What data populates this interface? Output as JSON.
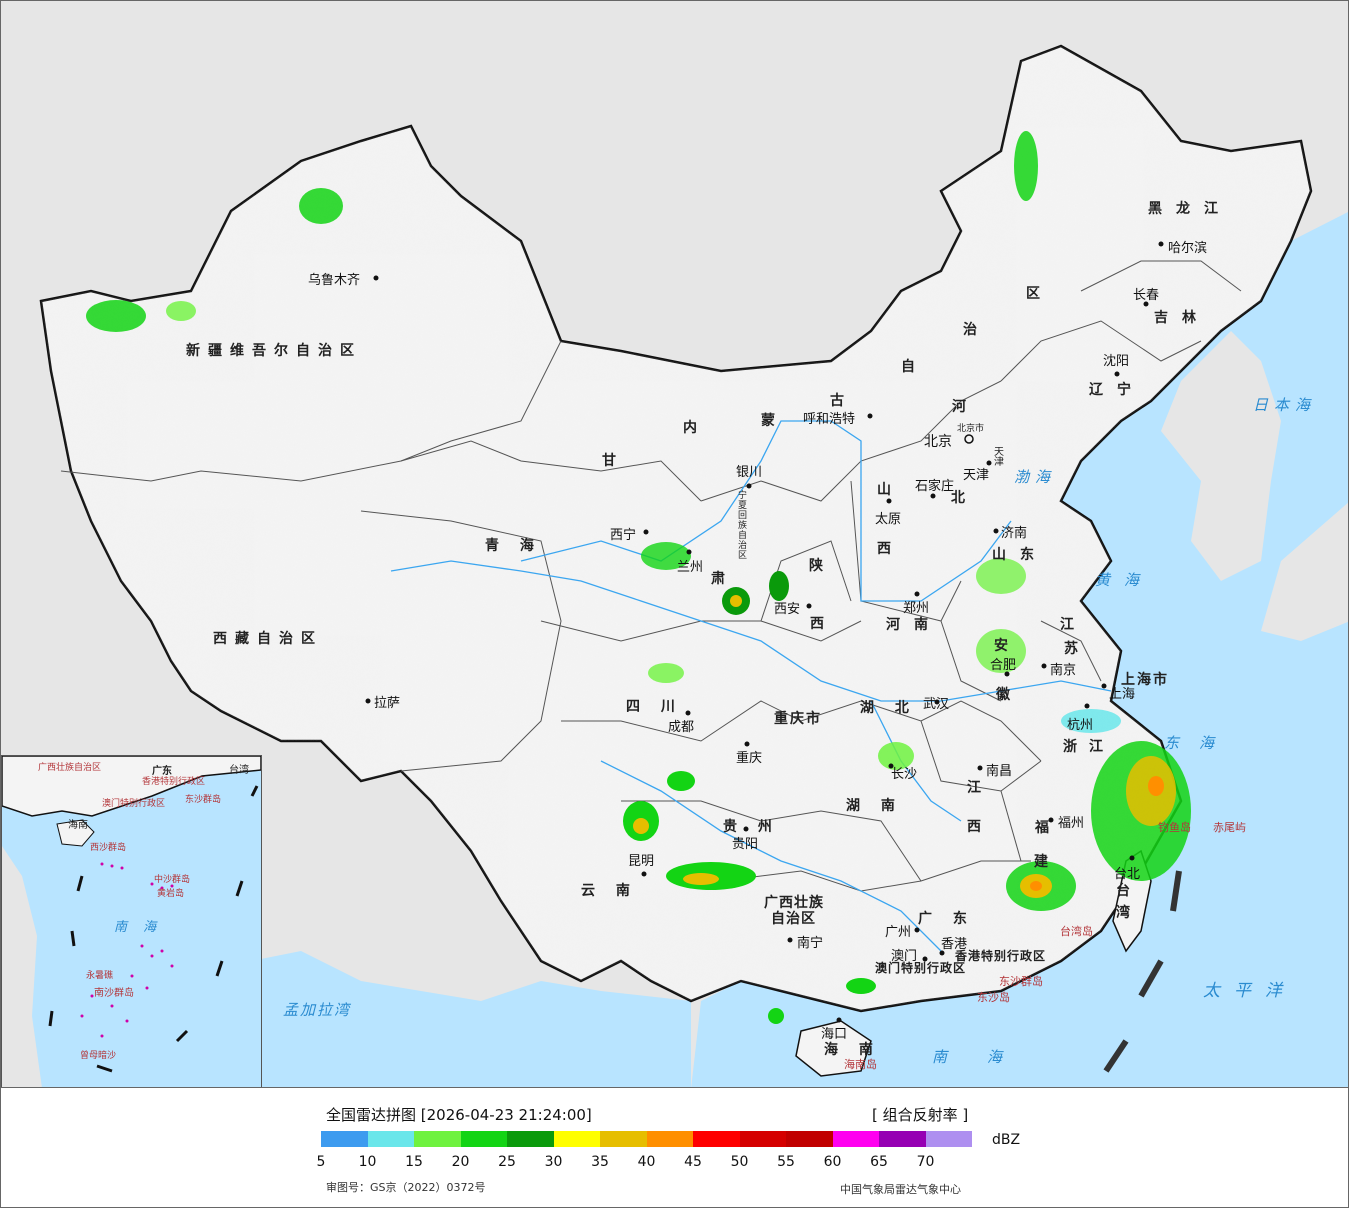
{
  "legend": {
    "title": "全国雷达拼图 [2026-04-23 21:24:00]",
    "product": "[ 组合反射率 ]",
    "unit": "dBZ",
    "ticks": [
      "5",
      "10",
      "15",
      "20",
      "25",
      "30",
      "35",
      "40",
      "45",
      "50",
      "55",
      "60",
      "65",
      "70"
    ],
    "colors": [
      "#3d9bef",
      "#6ae6ea",
      "#6ff23f",
      "#13d414",
      "#0a9a0b",
      "#fefe00",
      "#e6be00",
      "#ff8f00",
      "#fe0000",
      "#d50000",
      "#c10000",
      "#ff00f0",
      "#9600b3",
      "#ae8ff0"
    ],
    "review_no": "审图号：GS京（2022）0372号",
    "org": "中国气象局雷达气象中心"
  },
  "provinces": [
    {
      "id": "xinjiang",
      "text": "新疆维吾尔自治区"
    },
    {
      "id": "xizang",
      "text": "西藏自治区"
    },
    {
      "id": "qinghai",
      "text": "青  海"
    },
    {
      "id": "gansu",
      "text": "甘"
    },
    {
      "id": "gansu2",
      "text": "肃"
    },
    {
      "id": "neimenggu1",
      "text": "内"
    },
    {
      "id": "neimenggu2",
      "text": "蒙"
    },
    {
      "id": "neimenggu3",
      "text": "古"
    },
    {
      "id": "neimenggu4",
      "text": "自"
    },
    {
      "id": "neimenggu5",
      "text": "治"
    },
    {
      "id": "neimenggu6",
      "text": "区"
    },
    {
      "id": "heilongjiang",
      "text": "黑龙江"
    },
    {
      "id": "jilin",
      "text": "吉林"
    },
    {
      "id": "liaoning",
      "text": "辽宁"
    },
    {
      "id": "hebei1",
      "text": "河"
    },
    {
      "id": "hebei2",
      "text": "北"
    },
    {
      "id": "shanxi1",
      "text": "山"
    },
    {
      "id": "shanxi2",
      "text": "西"
    },
    {
      "id": "shaanxi1",
      "text": "陕"
    },
    {
      "id": "shaanxi2",
      "text": "西"
    },
    {
      "id": "ningxia",
      "text": "宁夏回族自治区"
    },
    {
      "id": "shandong",
      "text": "山东"
    },
    {
      "id": "henan",
      "text": "河南"
    },
    {
      "id": "jiangsu1",
      "text": "江"
    },
    {
      "id": "jiangsu2",
      "text": "苏"
    },
    {
      "id": "anhui1",
      "text": "安"
    },
    {
      "id": "anhui2",
      "text": "徽"
    },
    {
      "id": "sichuan",
      "text": "四  川"
    },
    {
      "id": "chongqing",
      "text": "重庆市"
    },
    {
      "id": "hubei",
      "text": "湖  北"
    },
    {
      "id": "zhejiang",
      "text": "浙江"
    },
    {
      "id": "shanghai",
      "text": "上海市"
    },
    {
      "id": "guizhou",
      "text": "贵  州"
    },
    {
      "id": "hunan",
      "text": "湖  南"
    },
    {
      "id": "jiangxi1",
      "text": "江"
    },
    {
      "id": "jiangxi2",
      "text": "西"
    },
    {
      "id": "fujian1",
      "text": "福"
    },
    {
      "id": "fujian2",
      "text": "建"
    },
    {
      "id": "taiwan1",
      "text": "台"
    },
    {
      "id": "taiwan2",
      "text": "湾"
    },
    {
      "id": "yunnan",
      "text": "云  南"
    },
    {
      "id": "guangxi1",
      "text": "广西壮族"
    },
    {
      "id": "guangxi2",
      "text": "自治区"
    },
    {
      "id": "guangdong",
      "text": "广  东"
    },
    {
      "id": "hainan",
      "text": "海  南"
    },
    {
      "id": "hongkong",
      "text": "香港特别行政区"
    },
    {
      "id": "macau",
      "text": "澳门特别行政区"
    },
    {
      "id": "tianjin",
      "text": "天津"
    },
    {
      "id": "beijing",
      "text": "北京市"
    }
  ],
  "cities": [
    {
      "id": "urumqi",
      "text": "乌鲁木齐"
    },
    {
      "id": "lhasa",
      "text": "拉萨"
    },
    {
      "id": "xining",
      "text": "西宁"
    },
    {
      "id": "lanzhou",
      "text": "兰州"
    },
    {
      "id": "yinchuan",
      "text": "银川"
    },
    {
      "id": "hohhot",
      "text": "呼和浩特"
    },
    {
      "id": "harbin",
      "text": "哈尔滨"
    },
    {
      "id": "changchun",
      "text": "长春"
    },
    {
      "id": "shenyang",
      "text": "沈阳"
    },
    {
      "id": "beijing-city",
      "text": "北京"
    },
    {
      "id": "tianjin-city",
      "text": "天津"
    },
    {
      "id": "shijiazhuang",
      "text": "石家庄"
    },
    {
      "id": "taiyuan",
      "text": "太原"
    },
    {
      "id": "jinan",
      "text": "济南"
    },
    {
      "id": "zhengzhou",
      "text": "郑州"
    },
    {
      "id": "xian",
      "text": "西安"
    },
    {
      "id": "hefei",
      "text": "合肥"
    },
    {
      "id": "nanjing",
      "text": "南京"
    },
    {
      "id": "shanghai-city",
      "text": "上海"
    },
    {
      "id": "hangzhou",
      "text": "杭州"
    },
    {
      "id": "wuhan",
      "text": "武汉"
    },
    {
      "id": "chengdu",
      "text": "成都"
    },
    {
      "id": "chongqing-city",
      "text": "重庆"
    },
    {
      "id": "guiyang",
      "text": "贵阳"
    },
    {
      "id": "changsha",
      "text": "长沙"
    },
    {
      "id": "nanchang",
      "text": "南昌"
    },
    {
      "id": "fuzhou",
      "text": "福州"
    },
    {
      "id": "taibei",
      "text": "台北"
    },
    {
      "id": "kunming",
      "text": "昆明"
    },
    {
      "id": "nanning",
      "text": "南宁"
    },
    {
      "id": "guangzhou",
      "text": "广州"
    },
    {
      "id": "hongkong-city",
      "text": "香港"
    },
    {
      "id": "macau-city",
      "text": "澳门"
    },
    {
      "id": "haikou",
      "text": "海口"
    }
  ],
  "seas": [
    {
      "id": "bohai",
      "text": "渤海"
    },
    {
      "id": "huanghai",
      "text": "黄海"
    },
    {
      "id": "donghai",
      "text": "东海"
    },
    {
      "id": "nanhai",
      "text": "南海"
    },
    {
      "id": "taipingyang",
      "text": "太平洋"
    },
    {
      "id": "ribenhai",
      "text": "日本海"
    },
    {
      "id": "mengjialawan",
      "text": "孟加拉湾"
    }
  ],
  "islands": [
    {
      "id": "diaoyudao",
      "text": "钓鱼岛"
    },
    {
      "id": "chiweiyu",
      "text": "赤尾屿"
    },
    {
      "id": "taiwandao",
      "text": "台湾岛"
    },
    {
      "id": "dongshaqundao",
      "text": "东沙群岛"
    },
    {
      "id": "dongshadao",
      "text": "东沙岛"
    },
    {
      "id": "hainandao",
      "text": "海南岛"
    }
  ],
  "inset": {
    "labels": [
      {
        "id": "inset-guangxi",
        "text": "广西壮族自治区"
      },
      {
        "id": "inset-guangdong",
        "text": "广东"
      },
      {
        "id": "inset-taiwan",
        "text": "台湾"
      },
      {
        "id": "inset-hk",
        "text": "香港特别行政区"
      },
      {
        "id": "inset-macau",
        "text": "澳门特别行政区"
      },
      {
        "id": "inset-dongsha",
        "text": "东沙群岛"
      },
      {
        "id": "inset-hainan",
        "text": "海南"
      },
      {
        "id": "inset-xisha",
        "text": "西沙群岛"
      },
      {
        "id": "inset-zhongsha",
        "text": "中沙群岛"
      },
      {
        "id": "inset-huangyan",
        "text": "黄岩岛"
      },
      {
        "id": "inset-nanhai",
        "text": "南  海"
      },
      {
        "id": "inset-nansha",
        "text": "南沙群岛"
      },
      {
        "id": "inset-zengmu",
        "text": "曾母暗沙"
      },
      {
        "id": "inset-yongshu",
        "text": "永暑礁"
      }
    ]
  }
}
